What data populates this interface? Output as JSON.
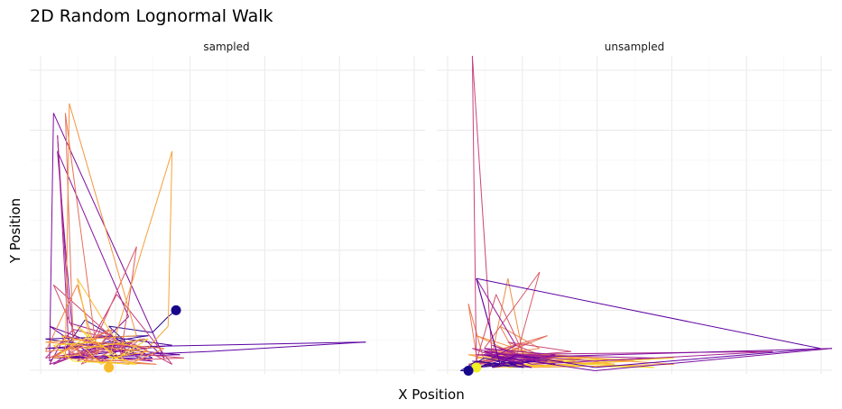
{
  "chart_data": {
    "type": "line",
    "title": "2D Random Lognormal Walk",
    "xlabel": "X Position",
    "ylabel": "Y Position",
    "legend": "none",
    "palette": "plasma",
    "facets": [
      {
        "name": "sampled",
        "xlim": [
          0,
          100
        ],
        "ylim": [
          0,
          100
        ],
        "start": {
          "x": 37,
          "y": 20
        },
        "end": {
          "x": 20,
          "y": 2
        },
        "path": [
          [
            37,
            20
          ],
          [
            35,
            18
          ],
          [
            31,
            13
          ],
          [
            20,
            15
          ],
          [
            26,
            8
          ],
          [
            14,
            17
          ],
          [
            9,
            8
          ],
          [
            30,
            12
          ],
          [
            4,
            11
          ],
          [
            15,
            9
          ],
          [
            27,
            6
          ],
          [
            18,
            12
          ],
          [
            36,
            9
          ],
          [
            8,
            5
          ],
          [
            31,
            5
          ],
          [
            24,
            10
          ],
          [
            4,
            8
          ],
          [
            85,
            10
          ],
          [
            45,
            7
          ],
          [
            6,
            5
          ],
          [
            38,
            6
          ],
          [
            20,
            8
          ],
          [
            5,
            15
          ],
          [
            18,
            4
          ],
          [
            26,
            10
          ],
          [
            12,
            7
          ],
          [
            29,
            11
          ],
          [
            34,
            5
          ],
          [
            6,
            82
          ],
          [
            5,
            4
          ],
          [
            11,
            10
          ],
          [
            7,
            70
          ],
          [
            25,
            18
          ],
          [
            16,
            7
          ],
          [
            22,
            9
          ],
          [
            13,
            6
          ],
          [
            31,
            4
          ],
          [
            9,
            12
          ],
          [
            5,
            3
          ],
          [
            19,
            9
          ],
          [
            14,
            5
          ],
          [
            24,
            4
          ],
          [
            21,
            12
          ],
          [
            10,
            16
          ],
          [
            7,
            75
          ],
          [
            10,
            5
          ],
          [
            6,
            3
          ],
          [
            9,
            6
          ],
          [
            30,
            8
          ],
          [
            16,
            10
          ],
          [
            12,
            4
          ],
          [
            20,
            8
          ],
          [
            4,
            5
          ],
          [
            11,
            14
          ],
          [
            27,
            9
          ],
          [
            36,
            3
          ],
          [
            22,
            25
          ],
          [
            14,
            7
          ],
          [
            8,
            5
          ],
          [
            18,
            12
          ],
          [
            24,
            8
          ],
          [
            6,
            28
          ],
          [
            12,
            11
          ],
          [
            29,
            6
          ],
          [
            39,
            5
          ],
          [
            18,
            4
          ],
          [
            8,
            10
          ],
          [
            15,
            6
          ],
          [
            27,
            40
          ],
          [
            25,
            22
          ],
          [
            23,
            6
          ],
          [
            28,
            11
          ],
          [
            13,
            3
          ],
          [
            17,
            8
          ],
          [
            21,
            14
          ],
          [
            5,
            5
          ],
          [
            11,
            9
          ],
          [
            9,
            82
          ],
          [
            17,
            6
          ],
          [
            20,
            14
          ],
          [
            10,
            7
          ],
          [
            15,
            5
          ],
          [
            32,
            3
          ],
          [
            14,
            4
          ],
          [
            19,
            9
          ],
          [
            4,
            7
          ],
          [
            12,
            28
          ],
          [
            16,
            10
          ],
          [
            34,
            8
          ],
          [
            25,
            3
          ],
          [
            9,
            5
          ],
          [
            10,
            85
          ],
          [
            27,
            12
          ],
          [
            4,
            10
          ],
          [
            30,
            7
          ],
          [
            20,
            5
          ],
          [
            36,
            70
          ],
          [
            35,
            15
          ],
          [
            26,
            3
          ],
          [
            18,
            9
          ],
          [
            8,
            12
          ],
          [
            13,
            6
          ],
          [
            6,
            5
          ],
          [
            15,
            12
          ],
          [
            12,
            30
          ],
          [
            22,
            10
          ],
          [
            28,
            8
          ],
          [
            18,
            3
          ],
          [
            14,
            8
          ],
          [
            30,
            11
          ],
          [
            22,
            5
          ],
          [
            12,
            15
          ],
          [
            16,
            10
          ],
          [
            6,
            9
          ],
          [
            11,
            4
          ],
          [
            27,
            3
          ],
          [
            19,
            6
          ],
          [
            21,
            5
          ],
          [
            20,
            2
          ]
        ]
      },
      {
        "name": "unsampled",
        "xlim": [
          0,
          100
        ],
        "ylim": [
          0,
          100
        ],
        "start": {
          "x": 10,
          "y": 2
        },
        "end": {
          "x": 8,
          "y": 1
        },
        "path": [
          [
            10,
            2
          ],
          [
            30,
            5
          ],
          [
            15,
            3
          ],
          [
            55,
            2
          ],
          [
            25,
            4
          ],
          [
            60,
            5
          ],
          [
            18,
            2
          ],
          [
            40,
            3
          ],
          [
            12,
            6
          ],
          [
            22,
            4
          ],
          [
            8,
            2
          ],
          [
            35,
            4
          ],
          [
            16,
            8
          ],
          [
            45,
            3
          ],
          [
            10,
            5
          ],
          [
            28,
            6
          ],
          [
            14,
            2
          ],
          [
            50,
            4
          ],
          [
            20,
            7
          ],
          [
            12,
            3
          ],
          [
            38,
            5
          ],
          [
            8,
            6
          ],
          [
            24,
            2
          ],
          [
            60,
            3
          ],
          [
            14,
            7
          ],
          [
            30,
            4
          ],
          [
            10,
            12
          ],
          [
            22,
            5
          ],
          [
            18,
            30
          ],
          [
            14,
            6
          ],
          [
            26,
            8
          ],
          [
            16,
            15
          ],
          [
            20,
            6
          ],
          [
            12,
            4
          ],
          [
            8,
            22
          ],
          [
            10,
            6
          ],
          [
            16,
            5
          ],
          [
            22,
            9
          ],
          [
            28,
            12
          ],
          [
            14,
            7
          ],
          [
            24,
            10
          ],
          [
            10,
            3
          ],
          [
            32,
            4
          ],
          [
            18,
            6
          ],
          [
            8,
            3
          ],
          [
            20,
            5
          ],
          [
            26,
            32
          ],
          [
            12,
            8
          ],
          [
            22,
            6
          ],
          [
            15,
            25
          ],
          [
            10,
            4
          ],
          [
            28,
            5
          ],
          [
            18,
            10
          ],
          [
            34,
            7
          ],
          [
            14,
            5
          ],
          [
            9,
            100
          ],
          [
            10,
            3
          ],
          [
            24,
            6
          ],
          [
            16,
            4
          ],
          [
            30,
            5
          ],
          [
            12,
            7
          ],
          [
            20,
            3
          ],
          [
            9,
            8
          ],
          [
            18,
            6
          ],
          [
            26,
            4
          ],
          [
            14,
            9
          ],
          [
            22,
            5
          ],
          [
            10,
            6
          ],
          [
            85,
            7
          ],
          [
            40,
            4
          ],
          [
            18,
            6
          ],
          [
            55,
            5
          ],
          [
            24,
            3
          ],
          [
            12,
            8
          ],
          [
            30,
            6
          ],
          [
            16,
            3
          ],
          [
            10,
            30
          ],
          [
            20,
            9
          ],
          [
            14,
            5
          ],
          [
            28,
            4
          ],
          [
            12,
            7
          ],
          [
            22,
            3
          ],
          [
            15,
            5
          ],
          [
            100,
            8
          ],
          [
            40,
            1
          ],
          [
            18,
            5
          ],
          [
            30,
            3
          ],
          [
            12,
            6
          ],
          [
            24,
            2
          ],
          [
            9,
            4
          ],
          [
            16,
            3
          ],
          [
            10,
            30
          ],
          [
            97,
            8
          ],
          [
            40,
            2
          ],
          [
            20,
            6
          ],
          [
            14,
            2
          ],
          [
            25,
            4
          ],
          [
            12,
            3
          ],
          [
            22,
            2
          ],
          [
            16,
            4
          ],
          [
            10,
            2
          ],
          [
            20,
            3
          ],
          [
            12,
            5
          ],
          [
            8,
            2
          ],
          [
            16,
            3
          ],
          [
            10,
            4
          ],
          [
            6,
            1
          ],
          [
            8,
            1
          ]
        ]
      }
    ]
  }
}
